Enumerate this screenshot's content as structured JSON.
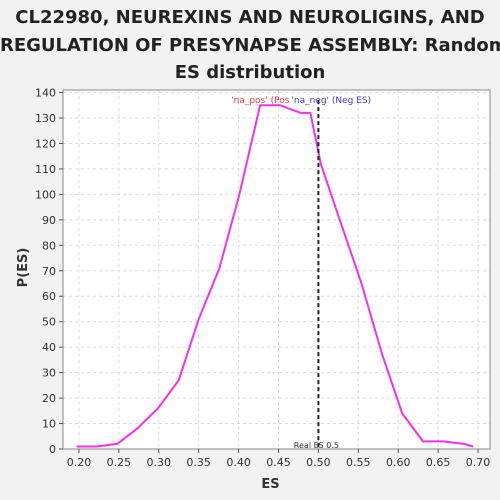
{
  "title_lines": [
    "CL22980, NEUREXINS AND NEUROLIGINS, AND",
    "REGULATION OF PRESYNAPSE ASSEMBLY: Random",
    "ES distribution"
  ],
  "colors": {
    "series": "#ee33ee",
    "pos_label": "#e04040",
    "neg_label": "#4040d0",
    "real_es_line": "#222222",
    "grid": "#dddddd",
    "plot_bg": "#ffffff",
    "page_bg": "#f2f2f2"
  },
  "chart_data": {
    "type": "line",
    "xlabel": "ES",
    "ylabel": "P(ES)",
    "xlim": [
      0.18,
      0.715
    ],
    "ylim": [
      0,
      141
    ],
    "x_ticks": [
      0.2,
      0.25,
      0.3,
      0.35,
      0.4,
      0.45,
      0.5,
      0.55,
      0.6,
      0.65,
      0.7
    ],
    "x_tick_labels": [
      "0.20",
      "0.25",
      "0.30",
      "0.35",
      "0.40",
      "0.45",
      "0.50",
      "0.55",
      "0.60",
      "0.65",
      "0.70"
    ],
    "y_ticks": [
      0,
      10,
      20,
      30,
      40,
      50,
      60,
      70,
      80,
      90,
      100,
      110,
      120,
      130,
      140
    ],
    "y_tick_labels": [
      "0",
      "10",
      "20",
      "30",
      "40",
      "50",
      "60",
      "70",
      "80",
      "90",
      "100",
      "110",
      "120",
      "130",
      "140"
    ],
    "grid": true,
    "series": [
      {
        "x": [
          0.197,
          0.222,
          0.248,
          0.273,
          0.299,
          0.325,
          0.35,
          0.376,
          0.401,
          0.427,
          0.452,
          0.478,
          0.49,
          0.503,
          0.529,
          0.554,
          0.58,
          0.605,
          0.631,
          0.656,
          0.682,
          0.694
        ],
        "y": [
          1,
          1,
          2,
          8,
          16,
          27,
          51,
          71,
          100,
          135,
          135,
          132,
          132,
          112,
          88,
          65,
          37,
          14,
          3,
          3,
          2,
          1
        ]
      }
    ],
    "real_es": {
      "x": 0.5,
      "label": "Real ES 0.5"
    },
    "annotations": {
      "pos": "'na_pos' (Pos",
      "neg": "'na_neg' (Neg ES)"
    }
  }
}
